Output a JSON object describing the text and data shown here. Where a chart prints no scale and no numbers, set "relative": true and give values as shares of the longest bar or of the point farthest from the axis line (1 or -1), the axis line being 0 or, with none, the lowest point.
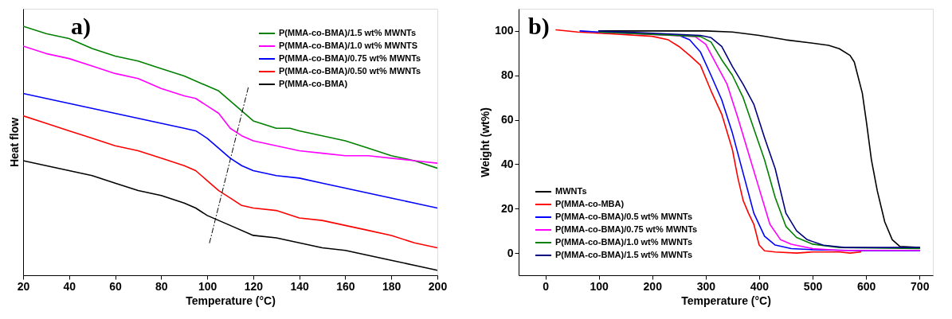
{
  "chart_data": [
    {
      "type": "line",
      "relative": true,
      "xlabel": "Temperature (°C)",
      "ylabel": "Heat flow",
      "xlim": [
        20,
        200
      ],
      "xticks": [
        20,
        40,
        60,
        80,
        100,
        120,
        140,
        160,
        180,
        200
      ],
      "tick_labels": "x",
      "grid": false,
      "legend": "top right",
      "annotations": [
        "a)"
      ],
      "series": [
        {
          "name": "P(MMA-co-BMA)/1.5 wt% MWNTs",
          "color": "#008000",
          "x": [
            20,
            30,
            40,
            50,
            60,
            70,
            80,
            90,
            100,
            105,
            110,
            115,
            120,
            130,
            136,
            140,
            150,
            160,
            170,
            180,
            190,
            200
          ],
          "values": [
            1.0,
            0.97,
            0.95,
            0.91,
            0.88,
            0.86,
            0.83,
            0.8,
            0.76,
            0.74,
            0.7,
            0.66,
            0.62,
            0.59,
            0.59,
            0.58,
            0.56,
            0.54,
            0.51,
            0.48,
            0.46,
            0.43
          ]
        },
        {
          "name": "P(MMA-co-BMA)/1.0 wt% MWNTS",
          "color": "#ff00ff",
          "x": [
            20,
            30,
            40,
            50,
            60,
            70,
            80,
            90,
            95,
            100,
            105,
            110,
            115,
            120,
            130,
            140,
            150,
            160,
            170,
            180,
            190,
            200
          ],
          "values": [
            0.92,
            0.89,
            0.87,
            0.84,
            0.81,
            0.79,
            0.75,
            0.72,
            0.71,
            0.68,
            0.65,
            0.59,
            0.56,
            0.54,
            0.52,
            0.5,
            0.49,
            0.48,
            0.48,
            0.47,
            0.46,
            0.45
          ]
        },
        {
          "name": "P(MMA-co-BMA)/0.75 wt% MWNTs",
          "color": "#0000ff",
          "x": [
            20,
            30,
            40,
            50,
            60,
            70,
            80,
            90,
            95,
            100,
            105,
            110,
            115,
            120,
            130,
            140,
            150,
            160,
            170,
            180,
            190,
            200
          ],
          "values": [
            0.73,
            0.71,
            0.69,
            0.67,
            0.65,
            0.63,
            0.61,
            0.59,
            0.58,
            0.55,
            0.51,
            0.47,
            0.44,
            0.42,
            0.4,
            0.39,
            0.37,
            0.35,
            0.33,
            0.31,
            0.29,
            0.27
          ]
        },
        {
          "name": "P(MMA-co-BMA)/0.50 wt% MWNTs",
          "color": "#ff0000",
          "x": [
            20,
            30,
            40,
            50,
            60,
            70,
            80,
            90,
            95,
            100,
            105,
            110,
            115,
            120,
            130,
            140,
            150,
            160,
            170,
            180,
            190,
            200
          ],
          "values": [
            0.64,
            0.61,
            0.58,
            0.55,
            0.52,
            0.5,
            0.47,
            0.44,
            0.42,
            0.38,
            0.34,
            0.31,
            0.28,
            0.27,
            0.26,
            0.23,
            0.22,
            0.2,
            0.18,
            0.16,
            0.13,
            0.11
          ]
        },
        {
          "name": "P(MMA-co-BMA)",
          "color": "#000000",
          "x": [
            20,
            30,
            40,
            50,
            60,
            70,
            80,
            90,
            95,
            100,
            105,
            110,
            120,
            130,
            140,
            150,
            160,
            170,
            180,
            190,
            200
          ],
          "values": [
            0.46,
            0.44,
            0.42,
            0.4,
            0.37,
            0.34,
            0.32,
            0.29,
            0.27,
            0.24,
            0.22,
            0.2,
            0.16,
            0.15,
            0.13,
            0.11,
            0.1,
            0.08,
            0.06,
            0.04,
            0.02
          ]
        },
        {
          "color": "#000000",
          "line_style": "dashed",
          "x": [
            101,
            118
          ],
          "values": [
            0.13,
            0.76
          ]
        }
      ]
    },
    {
      "type": "line",
      "xlabel": "Temperature (°C)",
      "ylabel": "Weight (wt%)",
      "xlim": [
        -50,
        725
      ],
      "xticks": [
        0,
        100,
        200,
        300,
        400,
        500,
        600,
        700
      ],
      "ylim": [
        -10,
        110
      ],
      "yticks": [
        0,
        20,
        40,
        60,
        80,
        100
      ],
      "grid": false,
      "legend": "bottom left",
      "annotations": [
        "b)"
      ],
      "series": [
        {
          "name": "MWNTs",
          "color": "#000000",
          "x": [
            100,
            200,
            300,
            350,
            400,
            450,
            500,
            530,
            550,
            570,
            578,
            593,
            601,
            610,
            621,
            635,
            649,
            663,
            700
          ],
          "values": [
            100,
            100,
            100,
            99.5,
            98,
            96,
            94.5,
            93.5,
            92,
            89,
            86,
            72,
            58.5,
            42,
            28,
            14,
            6,
            3,
            2.5
          ]
        },
        {
          "name": "P(MMA-co-MBA)",
          "color": "#ff0000",
          "x": [
            20,
            60,
            100,
            200,
            230,
            250,
            270,
            290,
            310,
            330,
            350,
            360,
            370,
            380,
            390,
            400,
            410,
            430,
            470,
            500,
            550,
            570,
            590
          ],
          "values": [
            100.5,
            99.5,
            99,
            97.6,
            96,
            93,
            89,
            84.6,
            73,
            62.5,
            46.5,
            34,
            23.7,
            18,
            13,
            3.6,
            1,
            0.5,
            0,
            0.5,
            0.5,
            0,
            0.5
          ]
        },
        {
          "name": "P(MMA-co-BMA)/0.5 wt% MWNTs",
          "color": "#0000ff",
          "x": [
            65,
            100,
            200,
            250,
            270,
            290,
            310,
            330,
            350,
            370,
            390,
            410,
            430,
            460,
            500,
            600,
            700
          ],
          "values": [
            100,
            99.5,
            98.5,
            98,
            96,
            90.6,
            80,
            69,
            54,
            36,
            18,
            7.6,
            3.6,
            2,
            1.5,
            1,
            1
          ]
        },
        {
          "name": "P(MMA-co-BMA)/0.75 wt% MWNTs",
          "color": "#ff00ff",
          "x": [
            100,
            200,
            280,
            300,
            320,
            340,
            360,
            380,
            400,
            420,
            440,
            460,
            500,
            550,
            700
          ],
          "values": [
            99.5,
            98.5,
            97.5,
            94,
            85,
            76,
            61,
            45,
            29,
            13,
            6,
            4,
            2,
            1.2,
            1.2
          ]
        },
        {
          "name": "P(MMA-co-BMA)/1.0 wt% MWNTs",
          "color": "#008000",
          "x": [
            100,
            200,
            290,
            310,
            330,
            350,
            370,
            390,
            410,
            430,
            450,
            470,
            500,
            550,
            700
          ],
          "values": [
            99.5,
            98.5,
            97.5,
            95,
            87,
            80,
            70,
            56,
            42,
            25,
            12,
            7,
            4,
            2.5,
            2
          ]
        },
        {
          "name": "P(MMA-co-BMA)/1.5 wt% MWNTs",
          "color": "#000080",
          "x": [
            100,
            200,
            290,
            310,
            330,
            350,
            370,
            390,
            410,
            430,
            450,
            470,
            490,
            520,
            560,
            700
          ],
          "values": [
            100,
            99,
            98,
            97,
            93,
            84,
            76,
            67,
            52,
            38,
            18,
            10,
            6,
            3.5,
            2.5,
            2.5
          ]
        }
      ]
    }
  ]
}
